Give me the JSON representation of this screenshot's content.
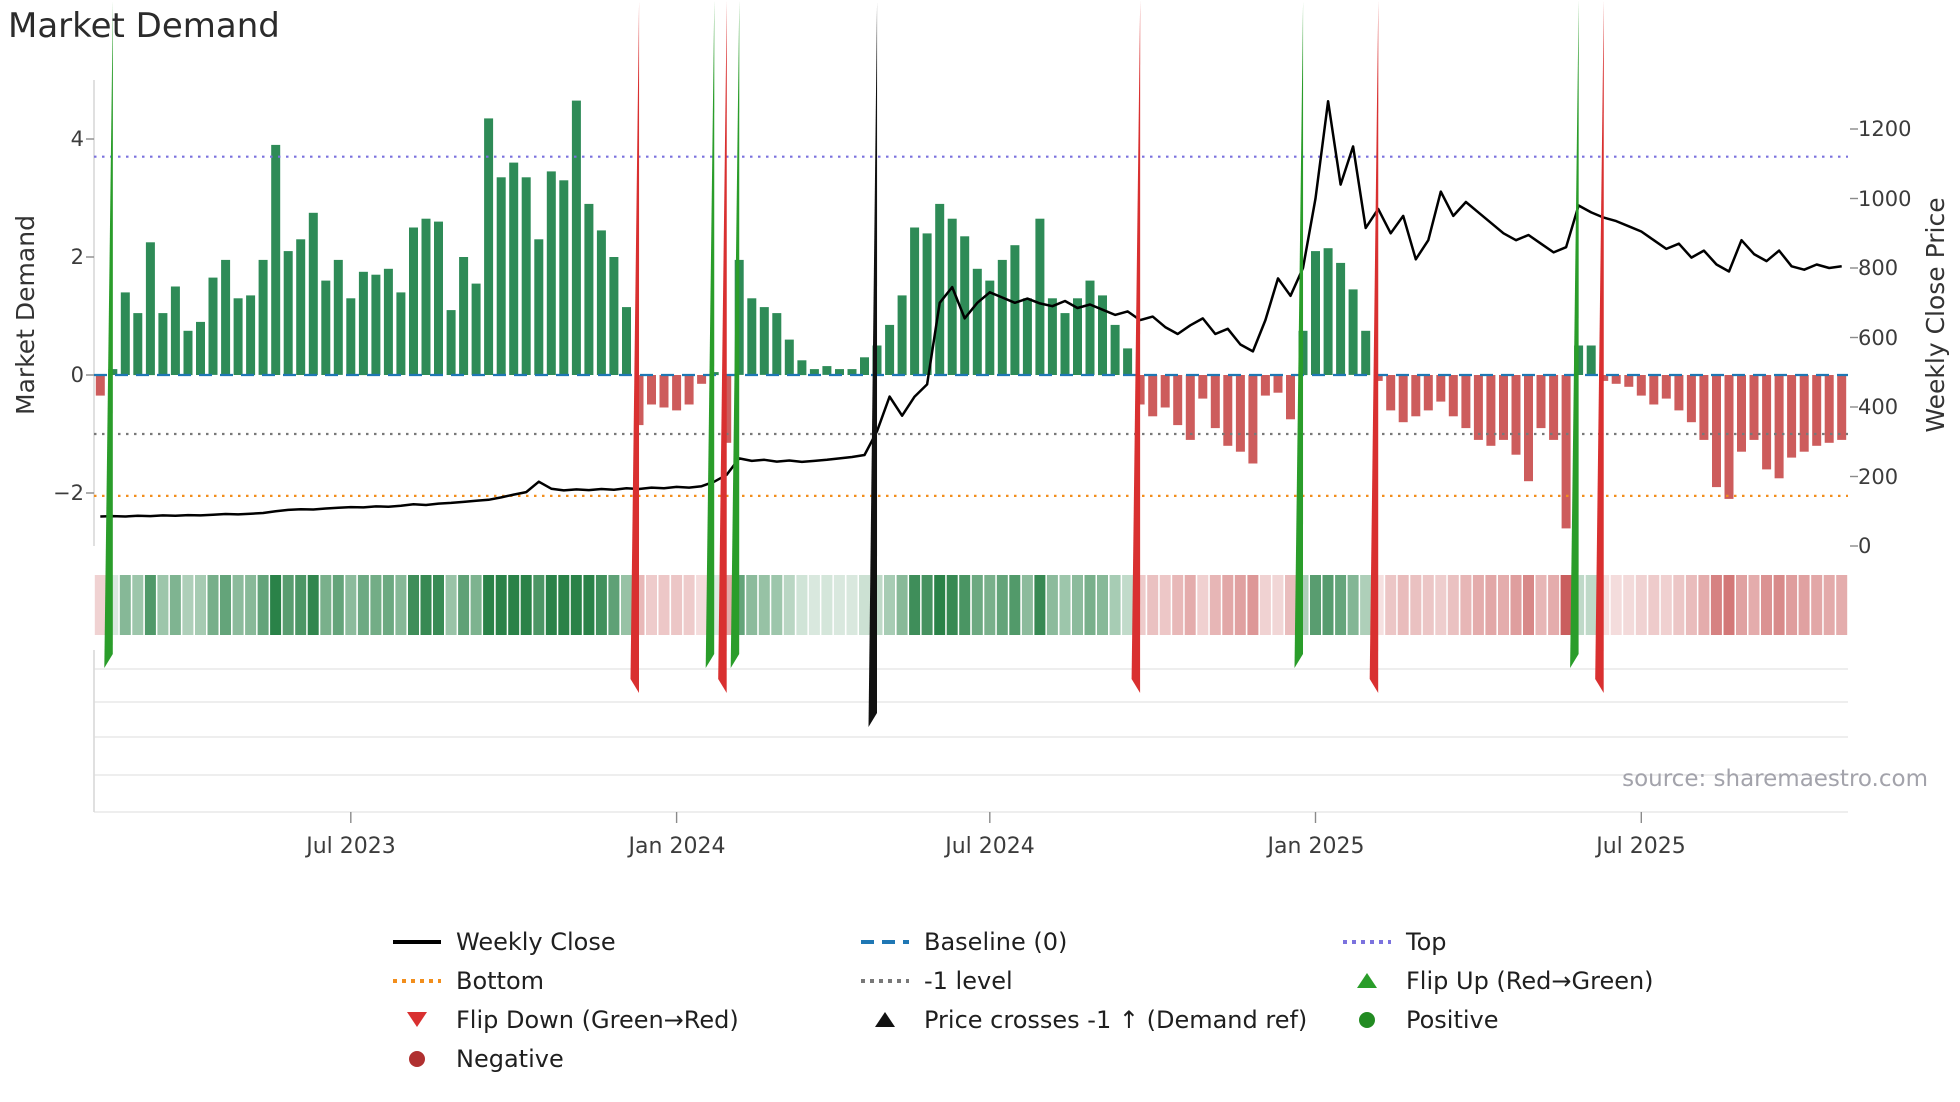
{
  "title": "Market Demand",
  "source": "source: sharemaestro.com",
  "axes": {
    "left_label": "Market Demand",
    "right_label": "Weekly Close Price",
    "left_ticks": [
      {
        "label": "4",
        "value": 4
      },
      {
        "label": "2",
        "value": 2
      },
      {
        "label": "0",
        "value": 0
      },
      {
        "label": "−2",
        "value": -2
      }
    ],
    "right_ticks": [
      {
        "label": "0",
        "value": 0
      },
      {
        "label": "200",
        "value": 200
      },
      {
        "label": "400",
        "value": 400
      },
      {
        "label": "600",
        "value": 600
      },
      {
        "label": "800",
        "value": 800
      },
      {
        "label": "1000",
        "value": 1000
      },
      {
        "label": "1200",
        "value": 1200
      }
    ],
    "x_ticks": [
      {
        "label": "Jul 2023",
        "index": 20
      },
      {
        "label": "Jan 2024",
        "index": 46
      },
      {
        "label": "Jul 2024",
        "index": 71
      },
      {
        "label": "Jan 2025",
        "index": 97
      },
      {
        "label": "Jul 2025",
        "index": 123
      }
    ]
  },
  "legend": {
    "items": [
      {
        "label": "Weekly Close",
        "swatch": "line-solid-black"
      },
      {
        "label": "Baseline (0)",
        "swatch": "line-dashed-blue"
      },
      {
        "label": "Top",
        "swatch": "line-dotted-purple"
      },
      {
        "label": "Bottom",
        "swatch": "line-dotted-orange"
      },
      {
        "label": "-1 level",
        "swatch": "line-dotted-gray"
      },
      {
        "label": "Flip Up (Red→Green)",
        "swatch": "triangle-up-green"
      },
      {
        "label": "Flip Down (Green→Red)",
        "swatch": "triangle-down-red"
      },
      {
        "label": "Price crosses -1 ↑ (Demand ref)",
        "swatch": "triangle-up-black"
      },
      {
        "label": "Positive",
        "swatch": "circle-green"
      },
      {
        "label": "Negative",
        "swatch": "circle-darkred"
      }
    ]
  },
  "chart_data": {
    "type": "combo",
    "title": "Market Demand",
    "frequency": "weekly",
    "n_points": 140,
    "x_range": [
      "Feb 2023",
      "Oct 2025"
    ],
    "x_tick_labels": [
      "Jul 2023",
      "Jan 2024",
      "Jul 2024",
      "Jan 2025",
      "Jul 2025"
    ],
    "x_tick_indices": [
      20,
      46,
      71,
      97,
      123
    ],
    "left_axis": {
      "label": "Market Demand",
      "ticks": [
        4,
        2,
        0,
        -2
      ],
      "range": [
        -2.9,
        5.0
      ]
    },
    "right_axis": {
      "label": "Weekly Close Price",
      "ticks": [
        0,
        200,
        400,
        600,
        800,
        1000,
        1200
      ],
      "range": [
        0,
        1340
      ]
    },
    "series": [
      {
        "name": "Demand",
        "type": "bar",
        "axis": "left",
        "positive_color": "#2e8b57",
        "negative_color": "#cd5c5c",
        "values": [
          -0.35,
          0.1,
          1.4,
          1.05,
          2.25,
          1.05,
          1.5,
          0.75,
          0.9,
          1.65,
          1.95,
          1.3,
          1.35,
          1.95,
          3.9,
          2.1,
          2.3,
          2.75,
          1.6,
          1.95,
          1.3,
          1.75,
          1.7,
          1.8,
          1.4,
          2.5,
          2.65,
          2.6,
          1.1,
          2.0,
          1.55,
          4.35,
          3.35,
          3.6,
          3.35,
          2.3,
          3.45,
          3.3,
          4.65,
          2.9,
          2.45,
          2.0,
          1.15,
          -0.85,
          -0.5,
          -0.55,
          -0.6,
          -0.5,
          -0.15,
          0.05,
          -1.15,
          1.95,
          1.3,
          1.15,
          1.05,
          0.6,
          0.25,
          0.1,
          0.15,
          0.1,
          0.1,
          0.3,
          0.5,
          0.85,
          1.35,
          2.5,
          2.4,
          2.9,
          2.65,
          2.35,
          1.8,
          1.6,
          1.95,
          2.2,
          1.3,
          2.65,
          1.3,
          1.05,
          1.3,
          1.6,
          1.35,
          0.85,
          0.45,
          -0.5,
          -0.7,
          -0.55,
          -0.85,
          -1.1,
          -0.4,
          -0.9,
          -1.2,
          -1.3,
          -1.5,
          -0.35,
          -0.3,
          -0.75,
          0.75,
          2.1,
          2.15,
          1.9,
          1.45,
          0.75,
          -0.1,
          -0.6,
          -0.8,
          -0.7,
          -0.6,
          -0.45,
          -0.7,
          -0.9,
          -1.1,
          -1.2,
          -1.1,
          -1.35,
          -1.8,
          -0.9,
          -1.1,
          -2.6,
          0.5,
          0.5,
          -0.1,
          -0.15,
          -0.2,
          -0.35,
          -0.5,
          -0.4,
          -0.6,
          -0.8,
          -1.1,
          -1.9,
          -2.1,
          -1.3,
          -1.1,
          -1.6,
          -1.75,
          -1.4,
          -1.3,
          -1.2,
          -1.15,
          -1.1
        ]
      },
      {
        "name": "Weekly Close",
        "type": "line",
        "axis": "right",
        "color": "#000000",
        "values": [
          85,
          86,
          85,
          87,
          86,
          88,
          87,
          89,
          88,
          90,
          92,
          91,
          93,
          95,
          100,
          104,
          106,
          105,
          108,
          110,
          112,
          111,
          114,
          113,
          116,
          120,
          118,
          122,
          124,
          127,
          130,
          133,
          140,
          148,
          155,
          185,
          165,
          160,
          163,
          161,
          164,
          162,
          166,
          164,
          168,
          166,
          170,
          168,
          172,
          185,
          205,
          252,
          245,
          248,
          243,
          246,
          242,
          245,
          248,
          252,
          256,
          262,
          330,
          430,
          375,
          430,
          465,
          700,
          745,
          655,
          700,
          730,
          715,
          700,
          712,
          698,
          690,
          705,
          685,
          695,
          680,
          665,
          675,
          650,
          660,
          630,
          610,
          635,
          655,
          610,
          625,
          580,
          560,
          650,
          770,
          720,
          800,
          1000,
          1280,
          1040,
          1150,
          915,
          970,
          900,
          950,
          825,
          880,
          1020,
          950,
          990,
          960,
          930,
          900,
          880,
          895,
          870,
          845,
          860,
          980,
          960,
          945,
          935,
          920,
          905,
          880,
          855,
          870,
          830,
          850,
          810,
          790,
          880,
          840,
          820,
          850,
          805,
          795,
          810,
          800,
          805
        ]
      }
    ],
    "reference_lines": [
      {
        "name": "Top",
        "value": 3.7,
        "axis": "left",
        "style": "dotted",
        "color": "#7b72de"
      },
      {
        "name": "Baseline (0)",
        "value": 0,
        "axis": "left",
        "style": "dashed",
        "color": "#1f77b4"
      },
      {
        "name": "-1 level",
        "value": -1,
        "axis": "left",
        "style": "dotted",
        "color": "#787878"
      },
      {
        "name": "Bottom",
        "value": -2.05,
        "axis": "left",
        "style": "dotted",
        "color": "#f28e1c"
      }
    ],
    "markers": {
      "flip_up_indices": [
        1,
        49,
        51,
        96,
        118
      ],
      "flip_up_color": "#2a9d2a",
      "flip_down_indices": [
        43,
        50,
        83,
        102,
        120
      ],
      "flip_down_color": "#d93030",
      "price_cross_indices": [
        62
      ],
      "price_cross_color": "#111111"
    },
    "heatmap": {
      "note": "color strip derived from Demand sign and magnitude",
      "positive_color": "#2e8b57",
      "negative_color": "#cd5c5c"
    }
  }
}
